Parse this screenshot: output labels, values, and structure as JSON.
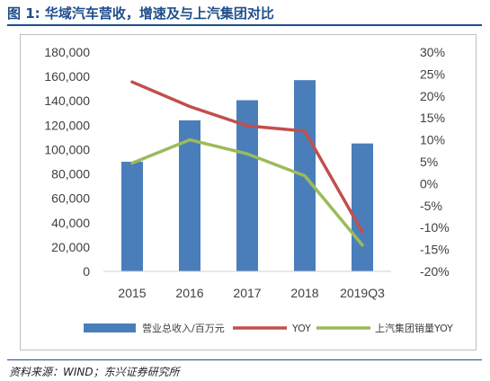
{
  "figure": {
    "title": "图 1: 华域汽车营收，增速及与上汽集团对比",
    "source": "资料来源：WIND；东兴证券研究所"
  },
  "chart_data": {
    "type": "bar+line",
    "categories": [
      "2015",
      "2016",
      "2017",
      "2018",
      "2019Q3"
    ],
    "left_axis": {
      "min": 0,
      "max": 180000,
      "step": 20000,
      "ticks": [
        "0",
        "20,000",
        "40,000",
        "60,000",
        "80,000",
        "100,000",
        "120,000",
        "140,000",
        "160,000",
        "180,000"
      ]
    },
    "right_axis": {
      "min": -20,
      "max": 30,
      "step": 5,
      "ticks": [
        "-20%",
        "-15%",
        "-10%",
        "-5%",
        "0%",
        "5%",
        "10%",
        "15%",
        "20%",
        "25%",
        "30%"
      ]
    },
    "grid": false,
    "legend_position": "bottom",
    "series": [
      {
        "name": "营业总收入/百万元",
        "type": "bar",
        "axis": "left",
        "color": "#4a7ebb",
        "values": [
          90000,
          124000,
          140500,
          157000,
          105000
        ]
      },
      {
        "name": "YOY",
        "type": "line",
        "axis": "right",
        "color": "#c0504d",
        "values": [
          23.2,
          17.6,
          13.2,
          12.0,
          -11.0
        ]
      },
      {
        "name": "上汽集团销量YOY",
        "type": "line",
        "axis": "right",
        "color": "#9bbb59",
        "values": [
          4.7,
          10.0,
          6.8,
          1.8,
          -14.0
        ]
      }
    ]
  }
}
